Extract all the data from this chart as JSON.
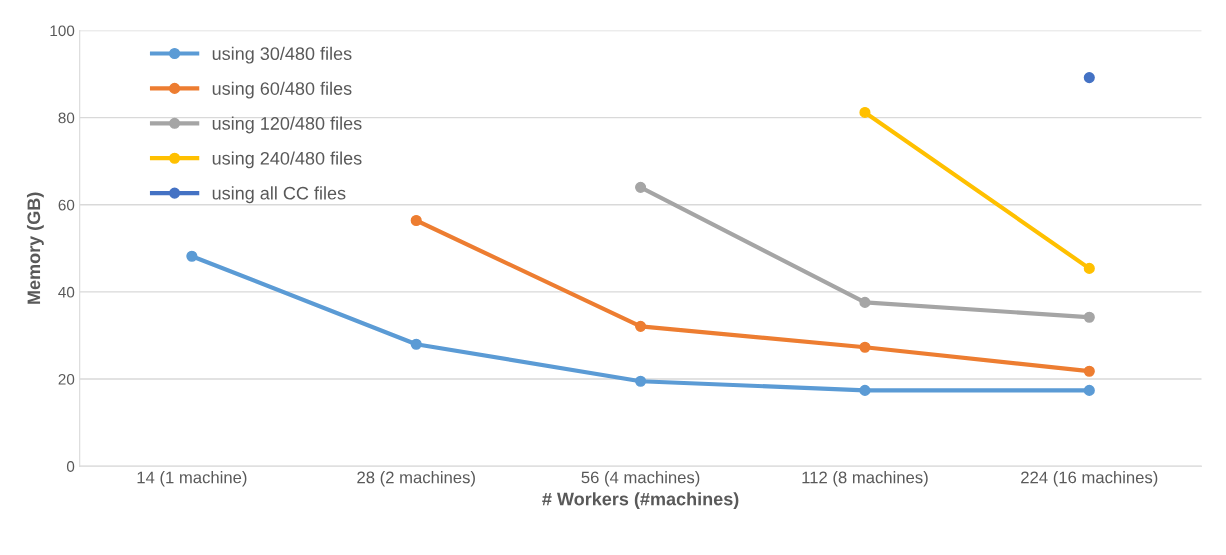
{
  "chart_data": {
    "type": "line",
    "xlabel": "# Workers (#machines)",
    "ylabel": "Memory (GB)",
    "categories": [
      "14 (1 machine)",
      "28 (2 machines)",
      "56 (4 machines)",
      "112 (8 machines)",
      "224 (16 machines)"
    ],
    "series": [
      {
        "name": "using 30/480 files",
        "color": "#5b9bd5",
        "values": [
          48.2,
          28.0,
          19.5,
          17.4,
          17.4
        ]
      },
      {
        "name": "using 60/480 files",
        "color": "#ed7d31",
        "values": [
          null,
          56.4,
          32.1,
          27.3,
          21.8
        ]
      },
      {
        "name": "using 120/480 files",
        "color": "#a5a5a5",
        "values": [
          null,
          null,
          64.0,
          37.6,
          34.2
        ]
      },
      {
        "name": "using 240/480 files",
        "color": "#ffc000",
        "values": [
          null,
          null,
          null,
          81.2,
          45.4
        ]
      },
      {
        "name": "using all CC files",
        "color": "#4472c4",
        "values": [
          null,
          null,
          null,
          null,
          89.2
        ]
      }
    ],
    "ylim": [
      0,
      100
    ],
    "yticks": [
      0,
      20,
      40,
      60,
      80,
      100
    ],
    "grid": "y",
    "legend": "top left",
    "marker": "circle",
    "line_style": "solid"
  }
}
